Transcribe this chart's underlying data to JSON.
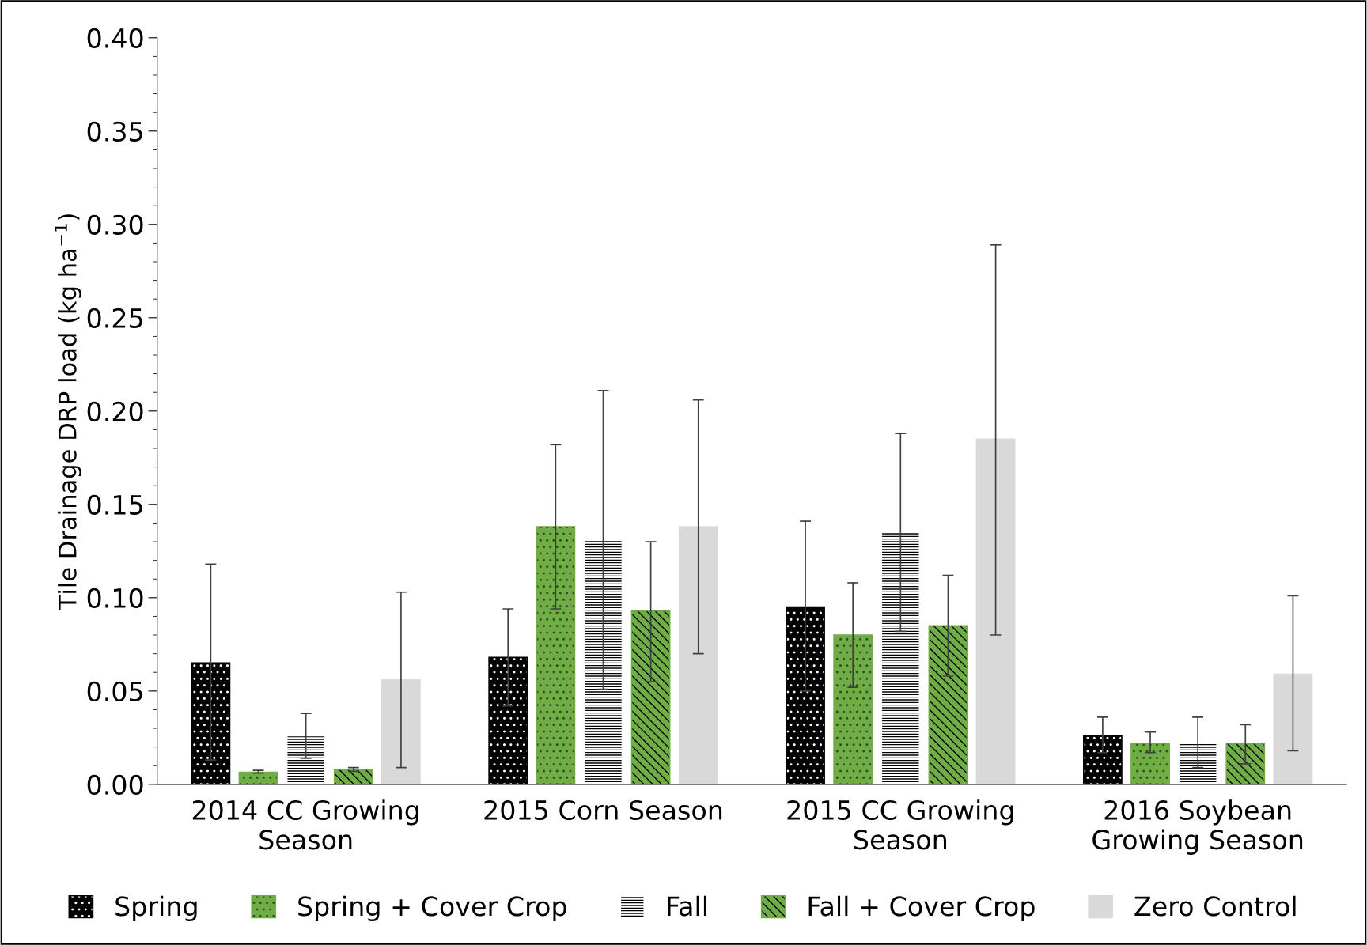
{
  "chart_data": {
    "type": "bar",
    "ylabel": "Tile Drainage DRP load (kg ha$^{−1}$)",
    "categories": [
      "2014 CC Growing\nSeason",
      "2015 Corn Season",
      "2015 CC Growing\nSeason",
      "2016 Soybean\nGrowing Season"
    ],
    "series": [
      {
        "name": "Spring",
        "color": "#000000",
        "values": [
          0.065,
          0.068,
          0.095,
          0.026
        ],
        "errors": [
          [
            0.013,
            0.118
          ],
          [
            0.042,
            0.094
          ],
          [
            0.05,
            0.141
          ],
          [
            0.017,
            0.036
          ]
        ]
      },
      {
        "name": "Spring + Cover Crop",
        "color": "#70ad47",
        "values": [
          0.0065,
          0.138,
          0.08,
          0.022
        ],
        "errors": [
          [
            0.006,
            0.0075
          ],
          [
            0.094,
            0.182
          ],
          [
            0.052,
            0.108
          ],
          [
            0.017,
            0.028
          ]
        ]
      },
      {
        "name": "Fall",
        "color": "#ffffff",
        "values": [
          0.026,
          0.131,
          0.135,
          0.022
        ],
        "errors": [
          [
            0.014,
            0.038
          ],
          [
            0.051,
            0.211
          ],
          [
            0.082,
            0.188
          ],
          [
            0.009,
            0.036
          ]
        ]
      },
      {
        "name": "Fall + Cover Crop",
        "color": "#70ad47",
        "values": [
          0.008,
          0.093,
          0.085,
          0.022
        ],
        "errors": [
          [
            0.007,
            0.009
          ],
          [
            0.055,
            0.13
          ],
          [
            0.058,
            0.112
          ],
          [
            0.011,
            0.032
          ]
        ]
      },
      {
        "name": "Zero Control",
        "color": "#d9d9d9",
        "values": [
          0.056,
          0.138,
          0.185,
          0.059
        ],
        "errors": [
          [
            0.009,
            0.103
          ],
          [
            0.07,
            0.206
          ],
          [
            0.08,
            0.289
          ],
          [
            0.018,
            0.101
          ]
        ]
      }
    ],
    "ylim": [
      0,
      0.4
    ],
    "yticks": [
      {
        "value": 0,
        "label": "0.00"
      },
      {
        "value": 0.05,
        "label": "0.05"
      },
      {
        "value": 0.1,
        "label": "0.10"
      },
      {
        "value": 0.15,
        "label": "0.15"
      },
      {
        "value": 0.2,
        "label": "0.20"
      },
      {
        "value": 0.25,
        "label": "0.25"
      },
      {
        "value": 0.3,
        "label": "0.30"
      },
      {
        "value": 0.35,
        "label": "0.35"
      },
      {
        "value": 0.4,
        "label": "0.40"
      }
    ],
    "grid": false,
    "legend": "bottom"
  }
}
